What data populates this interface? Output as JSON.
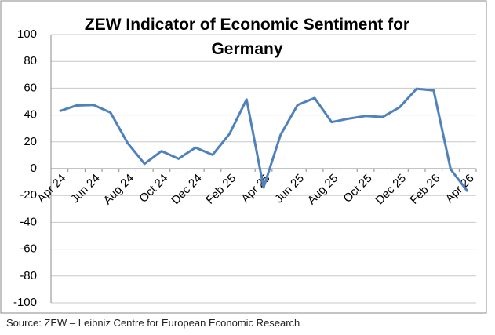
{
  "chart_data": {
    "type": "line",
    "title": "ZEW Indicator of Economic Sentiment for Germany",
    "source": "Source: ZEW – Leibniz Centre for European Economic Research",
    "categories": [
      "Apr 24",
      null,
      "Jun 24",
      null,
      "Aug 24",
      null,
      "Oct 24",
      null,
      "Dec 24",
      null,
      "Feb 25",
      null,
      "Apr 25",
      null,
      "Jun 25",
      null,
      "Aug 25",
      null,
      "Oct 25",
      null,
      "Dec 25",
      null,
      "Feb 26",
      null,
      "Apr 26"
    ],
    "series": [
      {
        "name": "ZEW Indicator of Economic Sentiment",
        "color": "#4f81bd",
        "values": [
          42.9,
          47.1,
          47.5,
          41.8,
          19.2,
          3.6,
          13.1,
          7.4,
          15.7,
          10.3,
          26.0,
          51.6,
          -14.0,
          25.2,
          47.5,
          52.7,
          34.7,
          37.3,
          39.3,
          38.5,
          45.8,
          59.6,
          58.3,
          -0.5,
          -17.0
        ]
      }
    ],
    "ylim": [
      -100,
      100
    ],
    "yticks": [
      -100,
      -80,
      -60,
      -40,
      -20,
      0,
      20,
      40,
      60,
      80,
      100
    ],
    "grid": true
  }
}
